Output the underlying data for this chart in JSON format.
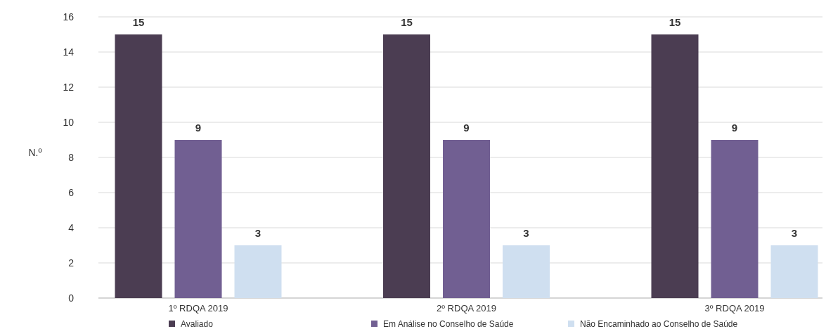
{
  "chart_data": {
    "type": "bar",
    "ylabel": "N.º",
    "categories": [
      "1º RDQA 2019",
      "2º RDQA 2019",
      "3º RDQA 2019"
    ],
    "series": [
      {
        "name": "Avaliado",
        "color": "#4b3d52",
        "values": [
          15,
          15,
          15
        ]
      },
      {
        "name": "Em Análise no Conselho de Saúde",
        "color": "#715f92",
        "values": [
          9,
          9,
          9
        ]
      },
      {
        "name": "Não Encaminhado ao Conselho de Saúde",
        "color": "#cfdff0",
        "values": [
          3,
          3,
          3
        ]
      }
    ],
    "ylim": [
      0,
      16
    ],
    "yticks": [
      0,
      2,
      4,
      6,
      8,
      10,
      12,
      14,
      16
    ],
    "grid": "y",
    "legend": "bottom",
    "data_labels": true
  }
}
